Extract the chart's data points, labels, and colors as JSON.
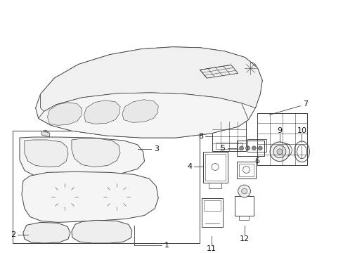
{
  "bg_color": "#ffffff",
  "lc": "#404040",
  "lw": 0.7,
  "fig_w": 4.89,
  "fig_h": 3.6,
  "dpi": 100
}
